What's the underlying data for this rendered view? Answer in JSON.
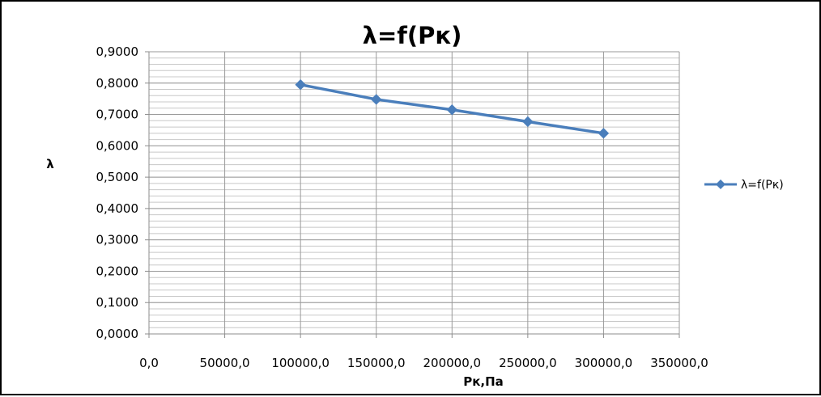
{
  "chart_data": {
    "type": "line",
    "title": "λ=f(Pк)",
    "xlabel": "Pк,Па",
    "ylabel": "λ",
    "xlim": [
      0,
      350000
    ],
    "ylim": [
      0,
      0.9
    ],
    "x_ticks": [
      0,
      50000,
      100000,
      150000,
      200000,
      250000,
      300000,
      350000
    ],
    "x_tick_labels": [
      "0,0",
      "50000,0",
      "100000,0",
      "150000,0",
      "200000,0",
      "250000,0",
      "300000,0",
      "350000,0"
    ],
    "y_ticks": [
      0,
      0.1,
      0.2,
      0.3,
      0.4,
      0.5,
      0.6,
      0.7,
      0.8,
      0.9
    ],
    "y_tick_labels": [
      "0,0000",
      "0,1000",
      "0,2000",
      "0,3000",
      "0,4000",
      "0,5000",
      "0,6000",
      "0,7000",
      "0,8000",
      "0,9000"
    ],
    "y_minor_step": 0.02,
    "grid": true,
    "legend_position": "right",
    "series": [
      {
        "name": "λ=f(Pк)",
        "color": "#4A7EBB",
        "marker": "diamond",
        "x": [
          100000,
          150000,
          200000,
          250000,
          300000
        ],
        "y": [
          0.795,
          0.748,
          0.715,
          0.677,
          0.64
        ]
      }
    ]
  }
}
